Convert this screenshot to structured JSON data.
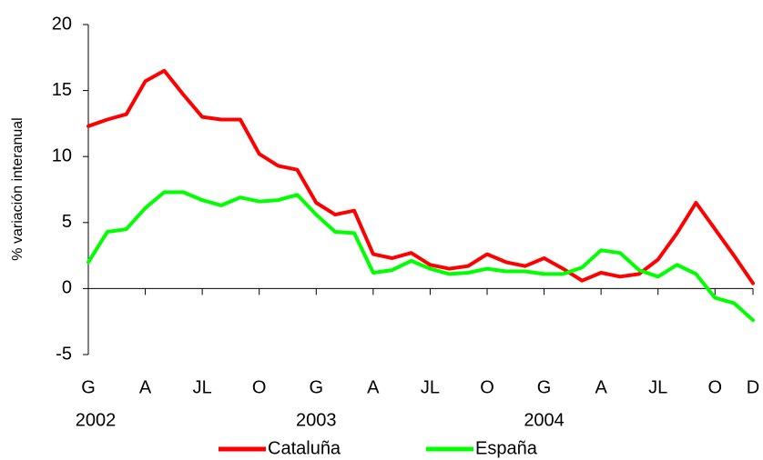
{
  "chart_data": {
    "type": "line",
    "ylabel": "% variación interanual",
    "categories": [
      "G",
      null,
      null,
      "A",
      null,
      null,
      "JL",
      null,
      null,
      "O",
      null,
      null,
      "G",
      null,
      null,
      "A",
      null,
      null,
      "JL",
      null,
      null,
      "O",
      null,
      null,
      "G",
      null,
      null,
      "A",
      null,
      null,
      "JL",
      null,
      null,
      "O",
      null,
      "D"
    ],
    "year_labels": [
      "2002",
      "2003",
      "2004"
    ],
    "series": [
      {
        "name": "Cataluña",
        "color": "#ff0000",
        "values": [
          12.3,
          12.8,
          13.2,
          15.7,
          16.5,
          14.7,
          13,
          12.8,
          12.8,
          10.2,
          9.3,
          9,
          6.5,
          5.6,
          5.9,
          2.6,
          2.3,
          2.7,
          1.8,
          1.5,
          1.7,
          2.6,
          2,
          1.7,
          2.3,
          1.5,
          0.6,
          1.2,
          0.9,
          1.1,
          2.2,
          4.2,
          6.5,
          4.5,
          2.5,
          0.4
        ]
      },
      {
        "name": "España",
        "color": "#00ff00",
        "values": [
          2,
          4.3,
          4.5,
          6.1,
          7.3,
          7.3,
          6.7,
          6.3,
          6.9,
          6.6,
          6.7,
          7.1,
          5.6,
          4.3,
          4.2,
          1.2,
          1.4,
          2.1,
          1.5,
          1.1,
          1.2,
          1.5,
          1.3,
          1.3,
          1.1,
          1.1,
          1.6,
          2.9,
          2.7,
          1.4,
          0.9,
          1.8,
          1.1,
          -0.7,
          -1.1,
          -2.4
        ]
      }
    ],
    "ylim": [
      -5,
      20
    ],
    "yticks": [
      -5,
      0,
      5,
      10,
      15,
      20
    ],
    "grid": false,
    "legend": "bottom"
  }
}
